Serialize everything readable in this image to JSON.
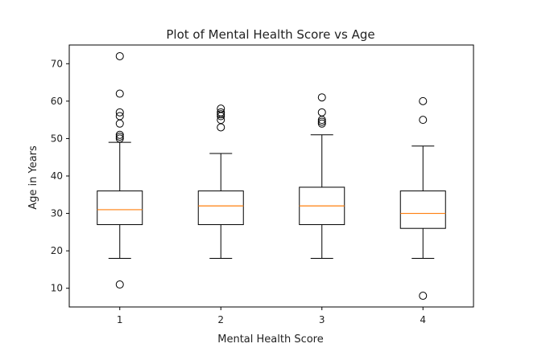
{
  "chart_data": {
    "type": "box",
    "title": "Plot of Mental Health Score vs Age",
    "xlabel": "Mental Health Score",
    "ylabel": "Age in Years",
    "ylim": [
      5,
      75
    ],
    "yticks": [
      10,
      20,
      30,
      40,
      50,
      60,
      70
    ],
    "grid": false,
    "categories": [
      "1",
      "2",
      "3",
      "4"
    ],
    "boxes": [
      {
        "category": "1",
        "whisker_low": 18,
        "q1": 27,
        "median": 31,
        "q3": 36,
        "whisker_high": 49,
        "outliers": [
          11,
          50,
          50.5,
          51,
          54,
          56,
          57,
          62,
          72
        ]
      },
      {
        "category": "2",
        "whisker_low": 18,
        "q1": 27,
        "median": 32,
        "q3": 36,
        "whisker_high": 46,
        "outliers": [
          53,
          55,
          56,
          56.5,
          57,
          58
        ]
      },
      {
        "category": "3",
        "whisker_low": 18,
        "q1": 27,
        "median": 32,
        "q3": 37,
        "whisker_high": 51,
        "outliers": [
          54,
          54.5,
          55,
          57,
          61
        ]
      },
      {
        "category": "4",
        "whisker_low": 18,
        "q1": 26,
        "median": 30,
        "q3": 36,
        "whisker_high": 48,
        "outliers": [
          8,
          55,
          60
        ]
      }
    ],
    "colors": {
      "box": "#000000",
      "median": "#ff7f0e",
      "outlier": "#000000"
    }
  }
}
